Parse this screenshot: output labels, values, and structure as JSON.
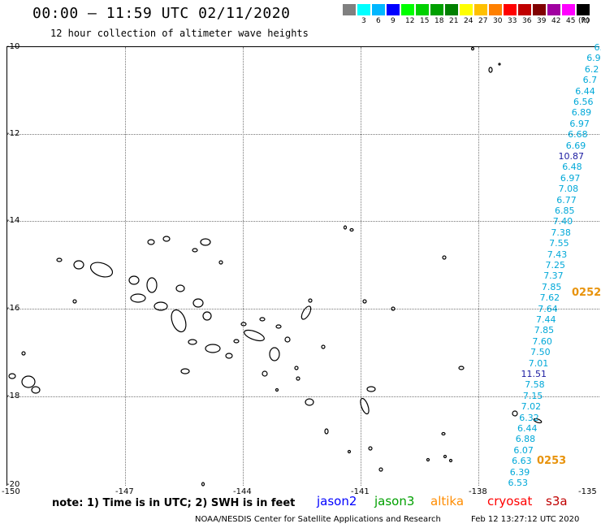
{
  "header": {
    "title": "00:00 — 11:59 UTC 02/11/2020",
    "subtitle": "12 hour collection of altimeter wave heights"
  },
  "legend": {
    "swatches": [
      {
        "color": "#808080",
        "label": ""
      },
      {
        "color": "#00ffff",
        "label": "3"
      },
      {
        "color": "#00b7ff",
        "label": "6"
      },
      {
        "color": "#0000ff",
        "label": "9"
      },
      {
        "color": "#00ff00",
        "label": "12"
      },
      {
        "color": "#00d000",
        "label": "15"
      },
      {
        "color": "#00a000",
        "label": "18"
      },
      {
        "color": "#008000",
        "label": "21"
      },
      {
        "color": "#ffff00",
        "label": "24"
      },
      {
        "color": "#ffc000",
        "label": "27"
      },
      {
        "color": "#ff8000",
        "label": "30"
      },
      {
        "color": "#ff0000",
        "label": "33"
      },
      {
        "color": "#c00000",
        "label": "36"
      },
      {
        "color": "#800000",
        "label": "39"
      },
      {
        "color": "#a000a0",
        "label": "42"
      },
      {
        "color": "#ff00ff",
        "label": "45"
      },
      {
        "color": "#000000",
        "label": "70"
      }
    ],
    "unit": "(ft)"
  },
  "axes": {
    "lat_labels": [
      "-10",
      "-12",
      "-14",
      "-16",
      "-18",
      "-20"
    ],
    "lon_labels": [
      "-150",
      "-147",
      "-144",
      "-141",
      "-138",
      "-135"
    ]
  },
  "map_features": [
    {
      "name": "Tahiti",
      "kind": "island"
    },
    {
      "name": "Moorea",
      "kind": "island"
    },
    {
      "name": "Tuamotu Archipelago",
      "kind": "atolls"
    },
    {
      "name": "Marquesas",
      "kind": "islands"
    }
  ],
  "wave_colors": {
    "jason3_cyan": "#00a8d8",
    "jason3_dark": "#1a1aa0"
  },
  "wave_heights": [
    {
      "value": "6.",
      "color": "#00a8d8"
    },
    {
      "value": "6.9",
      "color": "#00a8d8"
    },
    {
      "value": "6.2",
      "color": "#00a8d8"
    },
    {
      "value": "6.7",
      "color": "#00a8d8"
    },
    {
      "value": "6.44",
      "color": "#00a8d8"
    },
    {
      "value": "6.56",
      "color": "#00a8d8"
    },
    {
      "value": "6.89",
      "color": "#00a8d8"
    },
    {
      "value": "6.97",
      "color": "#00a8d8"
    },
    {
      "value": "6.68",
      "color": "#00a8d8"
    },
    {
      "value": "6.69",
      "color": "#00a8d8"
    },
    {
      "value": "10.87",
      "color": "#1a1aa0"
    },
    {
      "value": "6.48",
      "color": "#00a8d8"
    },
    {
      "value": "6.97",
      "color": "#00a8d8"
    },
    {
      "value": "7.08",
      "color": "#00a8d8"
    },
    {
      "value": "6.77",
      "color": "#00a8d8"
    },
    {
      "value": "6.85",
      "color": "#00a8d8"
    },
    {
      "value": "7.40",
      "color": "#00a8d8"
    },
    {
      "value": "7.38",
      "color": "#00a8d8"
    },
    {
      "value": "7.55",
      "color": "#00a8d8"
    },
    {
      "value": "7.43",
      "color": "#00a8d8"
    },
    {
      "value": "7.25",
      "color": "#00a8d8"
    },
    {
      "value": "7.37",
      "color": "#00a8d8"
    },
    {
      "value": "7.85",
      "color": "#00a8d8"
    },
    {
      "value": "7.62",
      "color": "#00a8d8"
    },
    {
      "value": "7.64",
      "color": "#00a8d8"
    },
    {
      "value": "7.44",
      "color": "#00a8d8"
    },
    {
      "value": "7.85",
      "color": "#00a8d8"
    },
    {
      "value": "7.60",
      "color": "#00a8d8"
    },
    {
      "value": "7.50",
      "color": "#00a8d8"
    },
    {
      "value": "7.01",
      "color": "#00a8d8"
    },
    {
      "value": "11.51",
      "color": "#1a1aa0"
    },
    {
      "value": "7.58",
      "color": "#00a8d8"
    },
    {
      "value": "7.15",
      "color": "#00a8d8"
    },
    {
      "value": "7.02",
      "color": "#00a8d8"
    },
    {
      "value": "6.32",
      "color": "#00a8d8"
    },
    {
      "value": "6.44",
      "color": "#00a8d8"
    },
    {
      "value": "6.88",
      "color": "#00a8d8"
    },
    {
      "value": "6.07",
      "color": "#00a8d8"
    },
    {
      "value": "6.63",
      "color": "#00a8d8"
    },
    {
      "value": "6.39",
      "color": "#00a8d8"
    },
    {
      "value": "6.53",
      "color": "#00a8d8"
    }
  ],
  "pass_times": [
    {
      "label": "0252"
    },
    {
      "label": "0253"
    }
  ],
  "note": "note: 1) Time is in UTC; 2) SWH is in feet",
  "missions": [
    {
      "label": "jason2",
      "color": "#0000ff"
    },
    {
      "label": "jason3",
      "color": "#00a000"
    },
    {
      "label": "altika",
      "color": "#ff8c00"
    },
    {
      "label": "cryosat",
      "color": "#ff0000"
    },
    {
      "label": "s3a",
      "color": "#c00000"
    }
  ],
  "footer": {
    "credit": "NOAA/NESDIS Center for Satellite Applications and Research",
    "timestamp": "Feb 12 13:27:12 UTC 2020"
  }
}
